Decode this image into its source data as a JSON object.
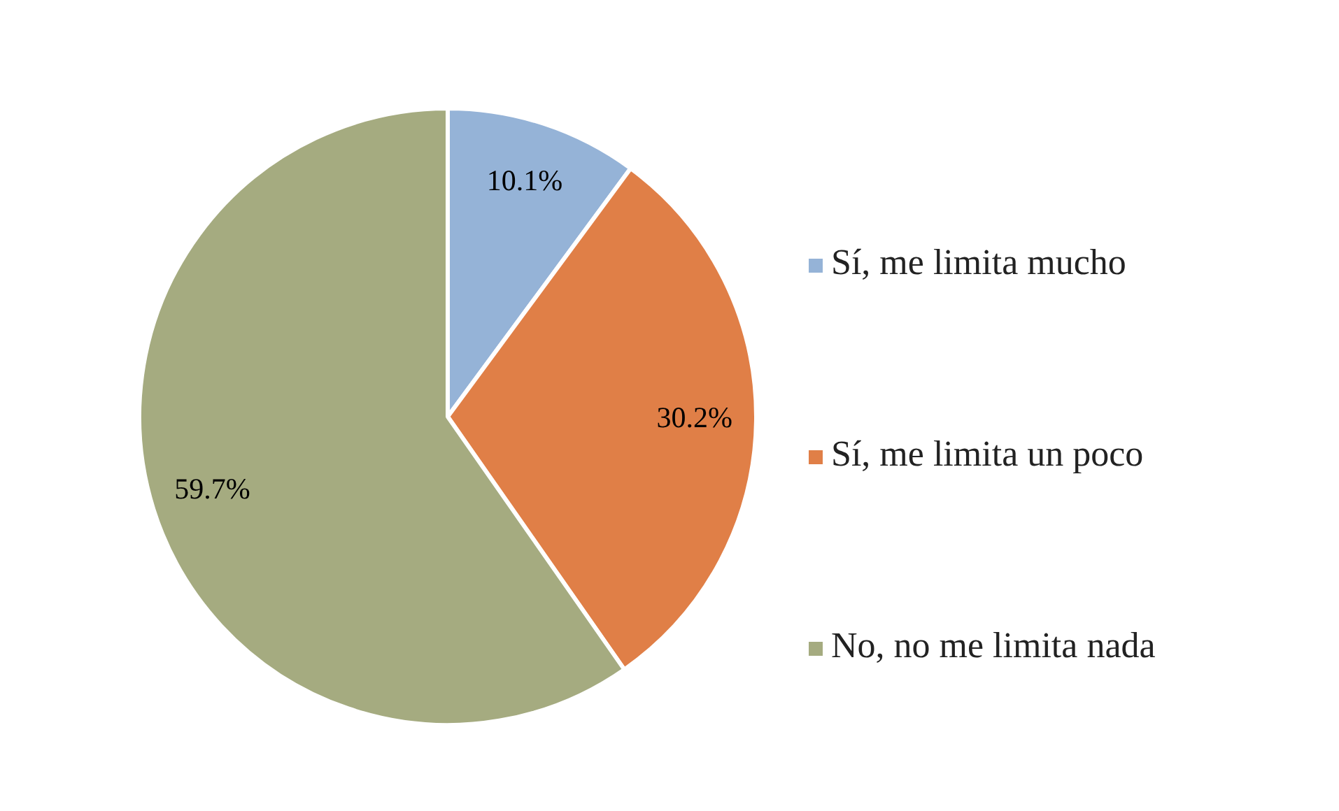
{
  "chart_data": {
    "type": "pie",
    "categories": [
      "Sí, me limita mucho",
      "Sí, me limita un poco",
      "No, no me limita nada"
    ],
    "values": [
      10.1,
      30.2,
      59.7
    ],
    "colors": [
      "#95b3d7",
      "#e07f47",
      "#a5ab80"
    ],
    "value_labels": [
      "10.1%",
      "30.2%",
      "59.7%"
    ],
    "legend": "right"
  }
}
